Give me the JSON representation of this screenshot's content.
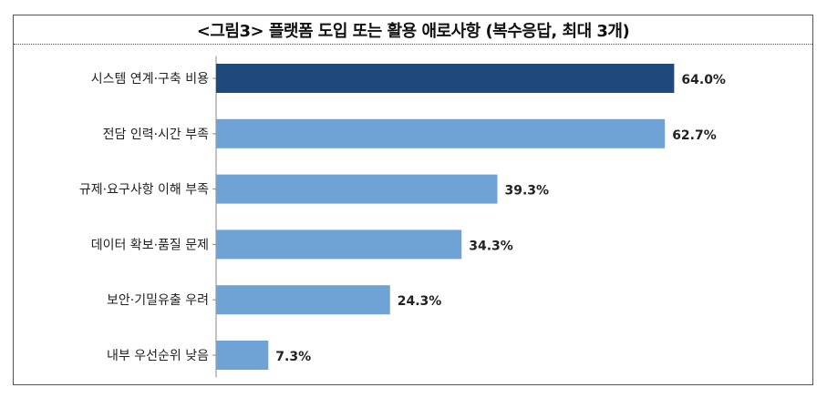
{
  "chart_data": {
    "type": "bar",
    "orientation": "horizontal",
    "title": "<그림3> 플랫폼 도입 또는 활용 애로사항 (복수응답, 최대 3개)",
    "categories": [
      "시스템 연계·구축 비용",
      "전담 인력·시간 부족",
      "규제·요구사항 이해 부족",
      "데이터 확보·품질 문제",
      "보안·기밀유출 우려",
      "내부 우선순위 낮음"
    ],
    "values": [
      64.0,
      62.7,
      39.3,
      34.3,
      24.3,
      7.3
    ],
    "value_labels": [
      "64.0%",
      "62.7%",
      "39.3%",
      "34.3%",
      "24.3%",
      "7.3%"
    ],
    "unit": "%",
    "xlim": [
      0,
      100
    ],
    "grid": false,
    "colors": {
      "highlight": "#1f497d",
      "default": "#6fa3d6"
    },
    "highlight_index": 0
  }
}
